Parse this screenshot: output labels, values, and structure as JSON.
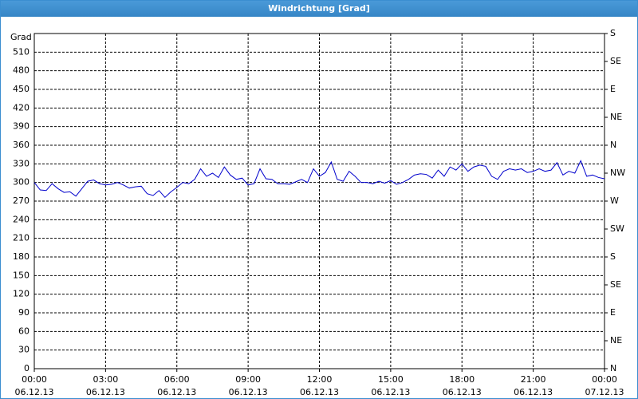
{
  "chart_data": {
    "type": "line",
    "title": "Windrichtung [Grad]",
    "y_label": "Grad",
    "x": [
      0,
      0.25,
      0.5,
      0.75,
      1,
      1.25,
      1.5,
      1.75,
      2,
      2.25,
      2.5,
      2.75,
      3,
      3.25,
      3.5,
      3.75,
      4,
      4.25,
      4.5,
      4.75,
      5,
      5.25,
      5.5,
      5.75,
      6,
      6.25,
      6.5,
      6.75,
      7,
      7.25,
      7.5,
      7.75,
      8,
      8.25,
      8.5,
      8.75,
      9,
      9.25,
      9.5,
      9.75,
      10,
      10.25,
      10.5,
      10.75,
      11,
      11.25,
      11.5,
      11.75,
      12,
      12.25,
      12.5,
      12.75,
      13,
      13.25,
      13.5,
      13.75,
      14,
      14.25,
      14.5,
      14.75,
      15,
      15.25,
      15.5,
      15.75,
      16,
      16.25,
      16.5,
      16.75,
      17,
      17.25,
      17.5,
      17.75,
      18,
      18.25,
      18.5,
      18.75,
      19,
      19.25,
      19.5,
      19.75,
      20,
      20.25,
      20.5,
      20.75,
      21,
      21.25,
      21.5,
      21.75,
      22,
      22.25,
      22.5,
      22.75,
      23,
      23.25,
      23.5,
      23.75,
      24
    ],
    "series": [
      {
        "name": "Windrichtung",
        "color": "#0000cc",
        "values": [
          300,
          288,
          287,
          298,
          290,
          284,
          285,
          278,
          290,
          302,
          304,
          298,
          296,
          297,
          300,
          296,
          291,
          293,
          294,
          282,
          279,
          287,
          276,
          285,
          292,
          300,
          298,
          305,
          322,
          310,
          315,
          308,
          325,
          312,
          305,
          307,
          296,
          298,
          322,
          306,
          305,
          298,
          298,
          297,
          301,
          305,
          300,
          322,
          310,
          316,
          333,
          305,
          302,
          318,
          310,
          300,
          300,
          298,
          302,
          299,
          303,
          297,
          300,
          305,
          312,
          314,
          313,
          307,
          320,
          310,
          325,
          320,
          330,
          318,
          325,
          328,
          326,
          310,
          305,
          318,
          322,
          320,
          322,
          316,
          318,
          322,
          318,
          320,
          332,
          312,
          318,
          315,
          335,
          310,
          312,
          308,
          306
        ]
      }
    ],
    "xlim": [
      0,
      24
    ],
    "xticks": [
      {
        "value": 0,
        "label": [
          "00:00",
          "06.12.13"
        ]
      },
      {
        "value": 3,
        "label": [
          "03:00",
          "06.12.13"
        ]
      },
      {
        "value": 6,
        "label": [
          "06:00",
          "06.12.13"
        ]
      },
      {
        "value": 9,
        "label": [
          "09:00",
          "06.12.13"
        ]
      },
      {
        "value": 12,
        "label": [
          "12:00",
          "06.12.13"
        ]
      },
      {
        "value": 15,
        "label": [
          "15:00",
          "06.12.13"
        ]
      },
      {
        "value": 18,
        "label": [
          "18:00",
          "06.12.13"
        ]
      },
      {
        "value": 21,
        "label": [
          "21:00",
          "06.12.13"
        ]
      },
      {
        "value": 24,
        "label": [
          "00:00",
          "07.12.13"
        ]
      }
    ],
    "ylim": [
      0,
      540
    ],
    "yticks": [
      0,
      30,
      60,
      90,
      120,
      150,
      180,
      210,
      240,
      270,
      300,
      330,
      360,
      390,
      420,
      450,
      480,
      510
    ],
    "y2lim": [
      0,
      540
    ],
    "y2ticks": [
      {
        "value": 0,
        "label": "N"
      },
      {
        "value": 45,
        "label": "NE"
      },
      {
        "value": 90,
        "label": "E"
      },
      {
        "value": 135,
        "label": "SE"
      },
      {
        "value": 180,
        "label": "S"
      },
      {
        "value": 225,
        "label": "SW"
      },
      {
        "value": 270,
        "label": "W"
      },
      {
        "value": 315,
        "label": "NW"
      },
      {
        "value": 360,
        "label": "N"
      },
      {
        "value": 405,
        "label": "NE"
      },
      {
        "value": 450,
        "label": "E"
      },
      {
        "value": 495,
        "label": "SE"
      },
      {
        "value": 540,
        "label": "S"
      }
    ],
    "grid": true
  }
}
